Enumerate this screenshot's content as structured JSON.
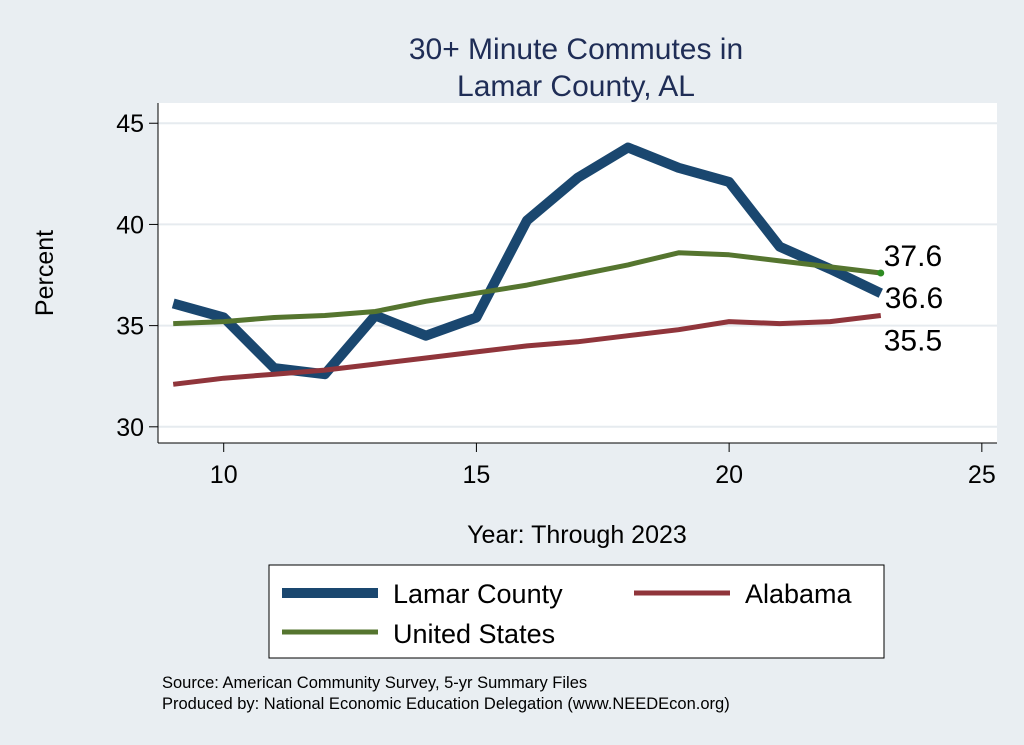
{
  "chart_data": {
    "type": "line",
    "title": [
      "30+ Minute Commutes in",
      "Lamar County, AL"
    ],
    "xlabel": "Year: Through 2023",
    "ylabel": "Percent",
    "xlim": [
      8.7,
      25.3
    ],
    "ylim": [
      29.2,
      46.0
    ],
    "xticks": [
      10,
      15,
      20,
      25
    ],
    "yticks": [
      30,
      35,
      40,
      45
    ],
    "grid": true,
    "legend_position": "bottom",
    "series": [
      {
        "name": "Lamar County",
        "color": "#1a476f",
        "x": [
          9,
          10,
          11,
          12,
          13,
          14,
          15,
          16,
          17,
          18,
          19,
          20,
          21,
          22,
          23
        ],
        "values": [
          36.1,
          35.4,
          32.9,
          32.6,
          35.5,
          34.5,
          35.4,
          40.2,
          42.3,
          43.8,
          42.8,
          42.1,
          38.9,
          37.8,
          36.6
        ],
        "end_label": "36.6"
      },
      {
        "name": "Alabama",
        "color": "#90353b",
        "x": [
          9,
          10,
          11,
          12,
          13,
          14,
          15,
          16,
          17,
          18,
          19,
          20,
          21,
          22,
          23
        ],
        "values": [
          32.1,
          32.4,
          32.6,
          32.8,
          33.1,
          33.4,
          33.7,
          34.0,
          34.2,
          34.5,
          34.8,
          35.2,
          35.1,
          35.2,
          35.5
        ],
        "end_label": "35.5"
      },
      {
        "name": "United States",
        "color": "#55752f",
        "x": [
          9,
          10,
          11,
          12,
          13,
          14,
          15,
          16,
          17,
          18,
          19,
          20,
          21,
          22,
          23
        ],
        "values": [
          35.1,
          35.2,
          35.4,
          35.5,
          35.7,
          36.2,
          36.6,
          37.0,
          37.5,
          38.0,
          38.6,
          38.5,
          38.2,
          37.9,
          37.6
        ],
        "end_label": "37.6"
      }
    ],
    "legend_entries": [
      "Lamar County",
      "Alabama",
      "United States"
    ]
  },
  "footer": {
    "source": "Source: American Community Survey, 5-yr Summary Files",
    "produced": "Produced by: National Economic Education Delegation (www.NEEDEcon.org)"
  }
}
